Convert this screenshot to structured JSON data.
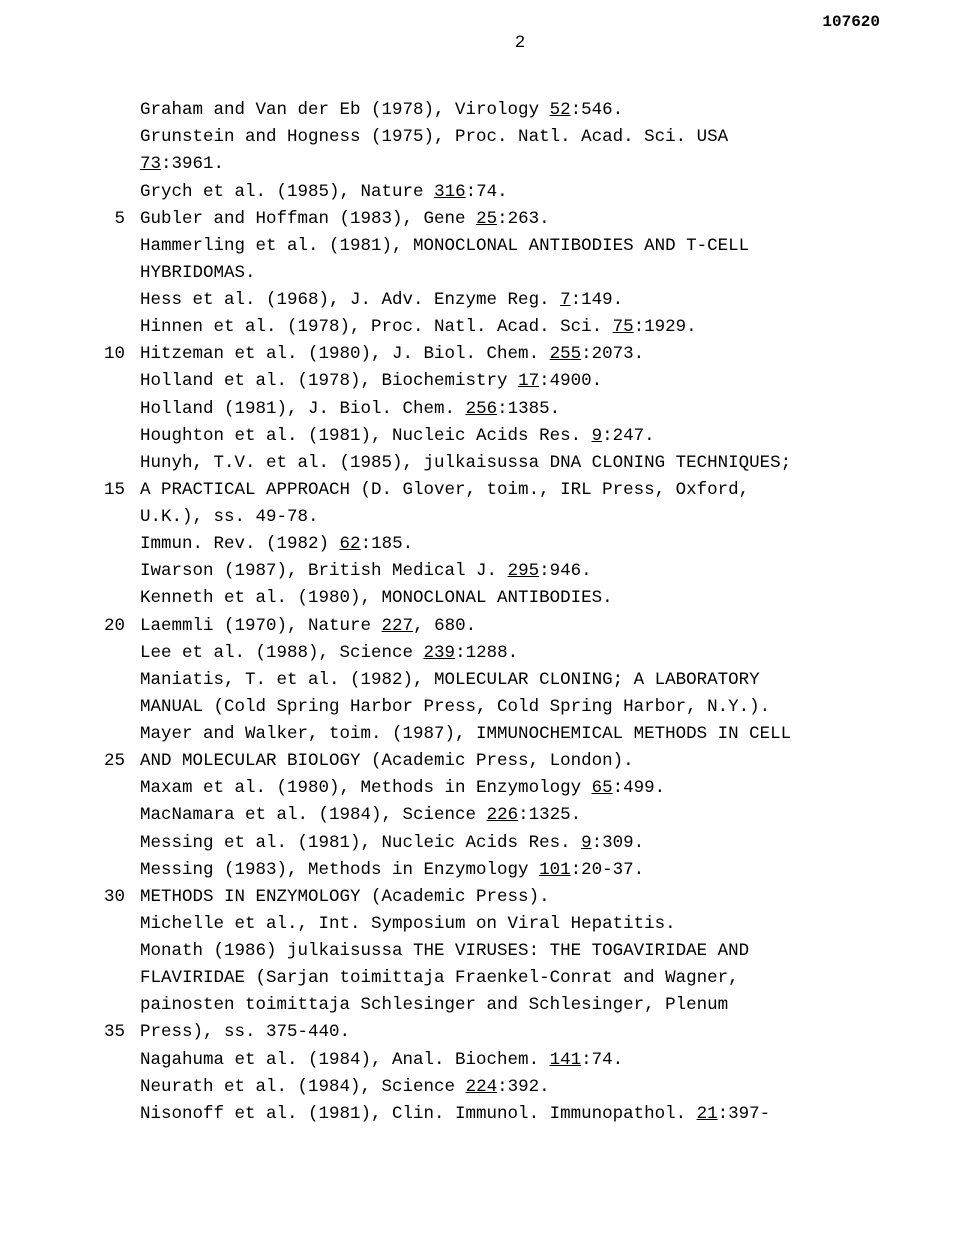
{
  "document_number": "107620",
  "page_number": "2",
  "line_markers": {
    "l3": "5",
    "l8": "10",
    "l13": "15",
    "l18": "20",
    "l23": "25",
    "l28": "30",
    "l33": "35"
  },
  "references": [
    {
      "pre": "Graham and Van der Eb (1978), Virology ",
      "u": "52",
      "post": ":546."
    },
    {
      "pre": "Grunstein and Hogness (1975), Proc. Natl. Acad. Sci. USA"
    },
    {
      "u": "73",
      "post": ":3961."
    },
    {
      "pre": "Grych et al. (1985), Nature ",
      "u": "316",
      "post": ":74."
    },
    {
      "pre": "Gubler and Hoffman (1983), Gene ",
      "u": "25",
      "post": ":263."
    },
    {
      "pre": "Hammerling et al. (1981), MONOCLONAL ANTIBODIES AND T-CELL"
    },
    {
      "pre": "HYBRIDOMAS."
    },
    {
      "pre": "Hess et al. (1968), J. Adv. Enzyme Reg. ",
      "u": "7",
      "post": ":149."
    },
    {
      "pre": "Hinnen et al. (1978), Proc. Natl. Acad. Sci. ",
      "u": "75",
      "post": ":1929."
    },
    {
      "pre": "Hitzeman et al. (1980), J. Biol. Chem. ",
      "u": "255",
      "post": ":2073."
    },
    {
      "pre": "Holland et al. (1978), Biochemistry ",
      "u": "17",
      "post": ":4900."
    },
    {
      "pre": "Holland (1981), J. Biol. Chem. ",
      "u": "256",
      "post": ":1385."
    },
    {
      "pre": "Houghton et al. (1981), Nucleic Acids Res. ",
      "u": "9",
      "post": ":247."
    },
    {
      "pre": "Hunyh, T.V. et al. (1985), julkaisussa DNA CLONING TECHNIQUES;"
    },
    {
      "pre": "A PRACTICAL APPROACH (D. Glover, toim., IRL Press, Oxford,"
    },
    {
      "pre": "U.K.), ss. 49-78."
    },
    {
      "pre": "Immun. Rev. (1982) ",
      "u": "62",
      "post": ":185."
    },
    {
      "pre": "Iwarson (1987), British Medical J. ",
      "u": "295",
      "post": ":946."
    },
    {
      "pre": "Kenneth et al. (1980), MONOCLONAL ANTIBODIES."
    },
    {
      "pre": "Laemmli (1970), Nature ",
      "u": "227",
      "post": ", 680."
    },
    {
      "pre": "Lee et al. (1988), Science ",
      "u": "239",
      "post": ":1288."
    },
    {
      "pre": "Maniatis, T. et al. (1982), MOLECULAR CLONING; A LABORATORY"
    },
    {
      "pre": "MANUAL (Cold Spring Harbor Press, Cold Spring Harbor, N.Y.)."
    },
    {
      "pre": "Mayer and Walker, toim. (1987), IMMUNOCHEMICAL METHODS IN CELL"
    },
    {
      "pre": "AND MOLECULAR BIOLOGY (Academic Press, London)."
    },
    {
      "pre": "Maxam et al. (1980), Methods in Enzymology ",
      "u": "65",
      "post": ":499."
    },
    {
      "pre": "MacNamara et al. (1984), Science ",
      "u": "226",
      "post": ":1325."
    },
    {
      "pre": "Messing et al. (1981), Nucleic Acids Res. ",
      "u": "9",
      "post": ":309."
    },
    {
      "pre": "Messing (1983), Methods in Enzymology ",
      "u": "101",
      "post": ":20-37."
    },
    {
      "pre": "METHODS IN ENZYMOLOGY (Academic Press)."
    },
    {
      "pre": "Michelle et al., Int. Symposium on Viral Hepatitis."
    },
    {
      "pre": "Monath (1986) julkaisussa THE VIRUSES: THE TOGAVIRIDAE AND"
    },
    {
      "pre": "FLAVIRIDAE (Sarjan toimittaja Fraenkel-Conrat and Wagner,"
    },
    {
      "pre": "painosten toimittaja Schlesinger and Schlesinger, Plenum"
    },
    {
      "pre": "Press), ss. 375-440."
    },
    {
      "pre": "Nagahuma et al. (1984), Anal. Biochem. ",
      "u": "141",
      "post": ":74."
    },
    {
      "pre": "Neurath et al. (1984), Science ",
      "u": "224",
      "post": ":392."
    },
    {
      "pre": "Nisonoff et al. (1981), Clin. Immunol. Immunopathol. ",
      "u": "21",
      "post": ":397-"
    }
  ]
}
